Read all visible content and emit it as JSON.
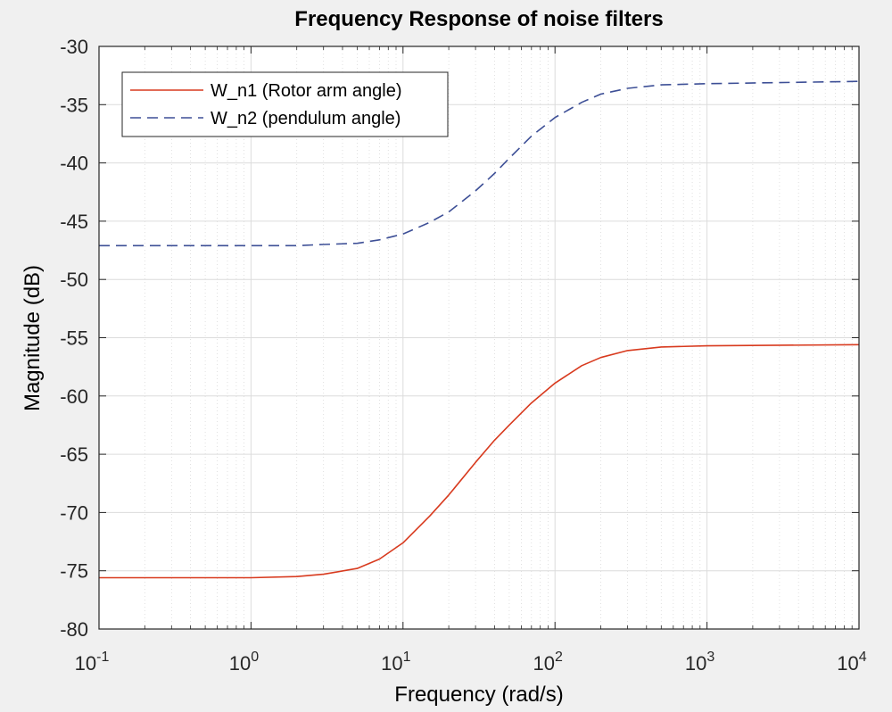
{
  "chart_data": {
    "type": "line",
    "title": "Frequency Response of noise filters",
    "xlabel": "Frequency  (rad/s)",
    "ylabel": "Magnitude (dB)",
    "xscale": "log",
    "xlim": [
      0.1,
      10000
    ],
    "ylim": [
      -80,
      -30
    ],
    "grid": true,
    "minor_grid": true,
    "legend_position": "top-left",
    "x_ticks": [
      {
        "base": "10",
        "exp": "-1"
      },
      {
        "base": "10",
        "exp": "0"
      },
      {
        "base": "10",
        "exp": "1"
      },
      {
        "base": "10",
        "exp": "2"
      },
      {
        "base": "10",
        "exp": "3"
      },
      {
        "base": "10",
        "exp": "4"
      }
    ],
    "y_ticks": [
      "-30",
      "-35",
      "-40",
      "-45",
      "-50",
      "-55",
      "-60",
      "-65",
      "-70",
      "-75",
      "-80"
    ],
    "series": [
      {
        "name": "W_n1 (Rotor arm angle)",
        "color": "#d83a1e",
        "dash": "solid",
        "x": [
          0.1,
          1,
          2,
          3,
          5,
          7,
          10,
          15,
          20,
          30,
          40,
          50,
          70,
          100,
          150,
          200,
          300,
          500,
          1000,
          10000
        ],
        "y": [
          -75.6,
          -75.6,
          -75.5,
          -75.3,
          -74.8,
          -74.0,
          -72.6,
          -70.3,
          -68.5,
          -65.7,
          -63.8,
          -62.5,
          -60.6,
          -58.9,
          -57.4,
          -56.7,
          -56.1,
          -55.8,
          -55.7,
          -55.6
        ]
      },
      {
        "name": "W_n2 (pendulum angle)",
        "color": "#3d4f96",
        "dash": "dashed",
        "x": [
          0.1,
          1,
          2,
          3,
          5,
          7,
          10,
          15,
          20,
          30,
          40,
          50,
          70,
          100,
          150,
          200,
          300,
          500,
          1000,
          10000
        ],
        "y": [
          -47.1,
          -47.1,
          -47.1,
          -47.0,
          -46.9,
          -46.6,
          -46.1,
          -45.1,
          -44.2,
          -42.4,
          -40.9,
          -39.6,
          -37.7,
          -36.1,
          -34.8,
          -34.1,
          -33.6,
          -33.3,
          -33.2,
          -33.0
        ]
      }
    ]
  }
}
